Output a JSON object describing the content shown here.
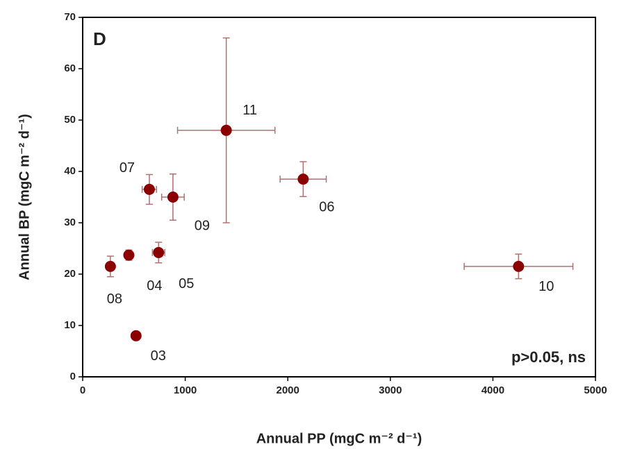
{
  "chart_data": {
    "type": "scatter",
    "panel": "D",
    "annotation": "p>0.05, ns",
    "xlabel": "Annual PP (mgC m⁻² d⁻¹)",
    "ylabel": "Annual BP (mgC m⁻² d⁻¹)",
    "labels": [
      "03",
      "08",
      "04",
      "05",
      "07",
      "09",
      "11",
      "06",
      "10"
    ],
    "x": [
      520,
      270,
      450,
      740,
      650,
      880,
      1400,
      2150,
      4250
    ],
    "xerr": [
      0,
      30,
      40,
      60,
      70,
      110,
      475,
      225,
      530
    ],
    "values": [
      8,
      21.5,
      23.7,
      24.2,
      36.5,
      35,
      48,
      38.5,
      21.5
    ],
    "yerr": [
      0,
      2,
      1,
      2,
      2.9,
      4.5,
      18,
      3.4,
      2.4
    ],
    "color": "#8b0000",
    "errcolor": "#b07070",
    "xlim": [
      0,
      5000
    ],
    "xticks": [
      0,
      1000,
      2000,
      3000,
      4000,
      5000
    ],
    "ylim": [
      0,
      70
    ],
    "yticks": [
      0,
      10,
      20,
      30,
      40,
      50,
      60,
      70
    ]
  }
}
